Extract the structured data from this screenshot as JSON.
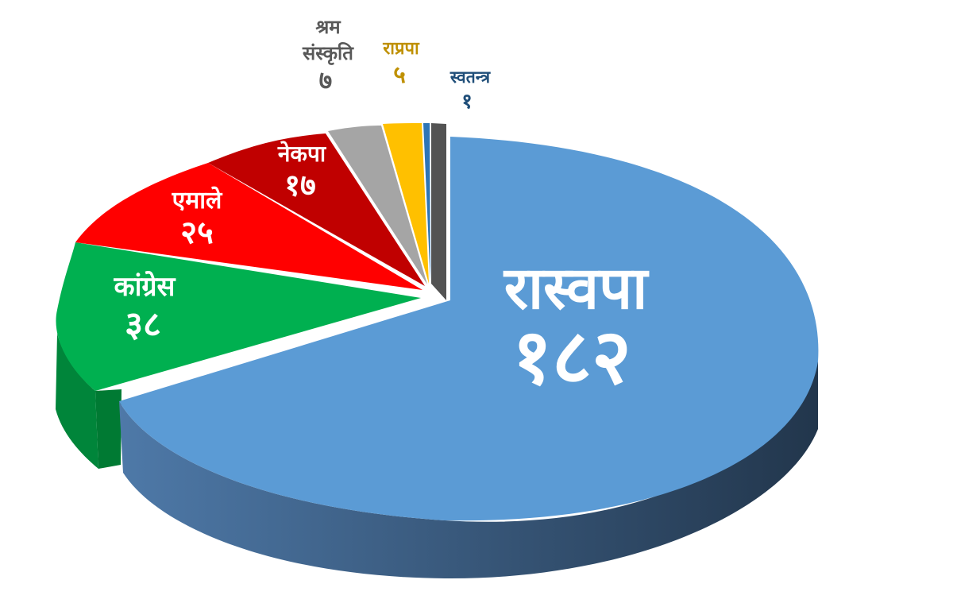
{
  "chart_data": {
    "type": "pie",
    "title": "",
    "slices": [
      {
        "name": "रास्वपा",
        "value": 182,
        "value_label": "१८२",
        "color": "#5b9bd5"
      },
      {
        "name": "कांग्रेस",
        "value": 38,
        "value_label": "३८",
        "color": "#00b050"
      },
      {
        "name": "एमाले",
        "value": 25,
        "value_label": "२५",
        "color": "#ff0000"
      },
      {
        "name": "नेकपा",
        "value": 17,
        "value_label": "१७",
        "color": "#c00000"
      },
      {
        "name": "श्रम संस्कृति",
        "name_lines": [
          "श्रम",
          "संस्कृति"
        ],
        "value": 7,
        "value_label": "७",
        "color": "#a5a5a5"
      },
      {
        "name": "राप्रपा",
        "value": 5,
        "value_label": "५",
        "color": "#ffc000"
      },
      {
        "name": "स्वतन्त्र",
        "value": 1,
        "value_label": "१",
        "color": "#2e75b6"
      }
    ],
    "style": "3d-exploded",
    "legend": "none",
    "label_colors": {
      "inside": "#ffffff",
      "श्रम संस्कृति": "#595959",
      "राप्रपा": "#bf9000",
      "स्वतन्त्र": "#1f4e79"
    }
  }
}
